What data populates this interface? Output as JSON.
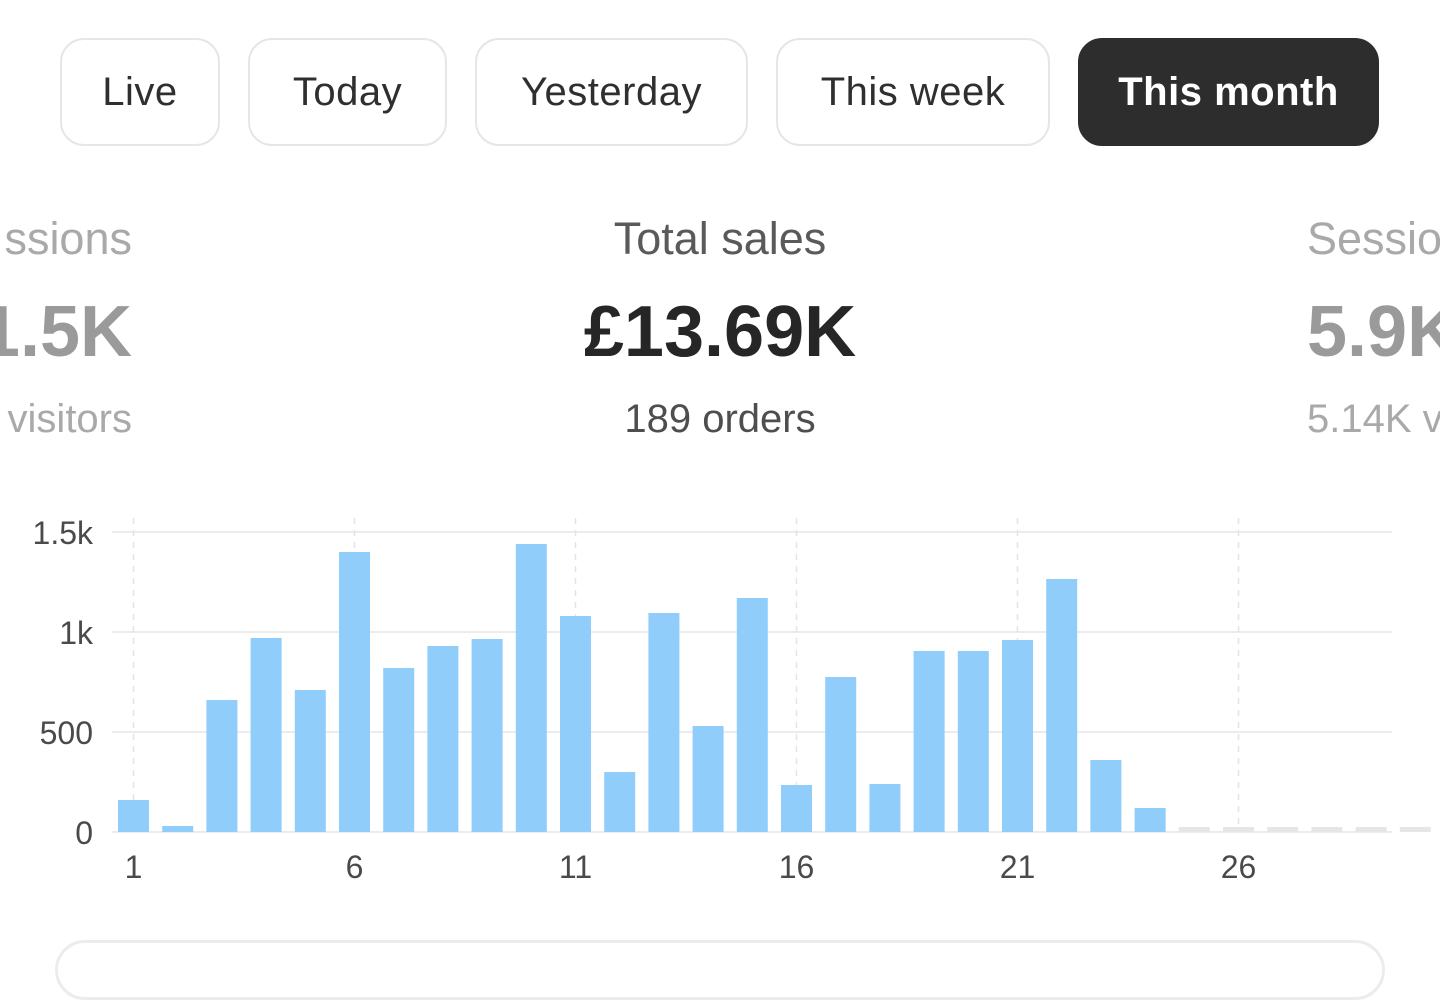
{
  "tabs": [
    {
      "label": "Live",
      "active": false
    },
    {
      "label": "Today",
      "active": false
    },
    {
      "label": "Yesterday",
      "active": false
    },
    {
      "label": "This week",
      "active": false
    },
    {
      "label": "This month",
      "active": true
    }
  ],
  "metrics": {
    "left": {
      "label": "ssions",
      "value": "1.5K",
      "sub": "visitors"
    },
    "center": {
      "label": "Total sales",
      "value": "£13.69K",
      "sub": "189 orders"
    },
    "right": {
      "label": "Sessio",
      "value": "5.9K",
      "sub": "5.14K v"
    }
  },
  "chart_data": {
    "type": "bar",
    "categories": [
      1,
      2,
      3,
      4,
      5,
      6,
      7,
      8,
      9,
      10,
      11,
      12,
      13,
      14,
      15,
      16,
      17,
      18,
      19,
      20,
      21,
      22,
      23,
      24,
      25,
      26,
      27,
      28,
      29,
      30
    ],
    "values": [
      160,
      30,
      660,
      970,
      710,
      1400,
      820,
      930,
      965,
      1440,
      1080,
      300,
      1095,
      530,
      1170,
      235,
      775,
      240,
      905,
      905,
      960,
      1265,
      360,
      120,
      0,
      0,
      0,
      0,
      0,
      0
    ],
    "future_days": [
      25,
      26,
      27,
      28,
      29,
      30
    ],
    "ylim": [
      0,
      1500
    ],
    "yticks": [
      {
        "value": 0,
        "label": "0"
      },
      {
        "value": 500,
        "label": "500"
      },
      {
        "value": 1000,
        "label": "1k"
      },
      {
        "value": 1500,
        "label": "1.5k"
      }
    ],
    "xticks": [
      {
        "day": 1,
        "label": "1"
      },
      {
        "day": 6,
        "label": "6"
      },
      {
        "day": 11,
        "label": "11"
      },
      {
        "day": 16,
        "label": "16"
      },
      {
        "day": 21,
        "label": "21"
      },
      {
        "day": 26,
        "label": "26"
      }
    ],
    "bar_color": "#90cdfb",
    "placeholder_color": "#e6e6e6",
    "grid": true
  }
}
